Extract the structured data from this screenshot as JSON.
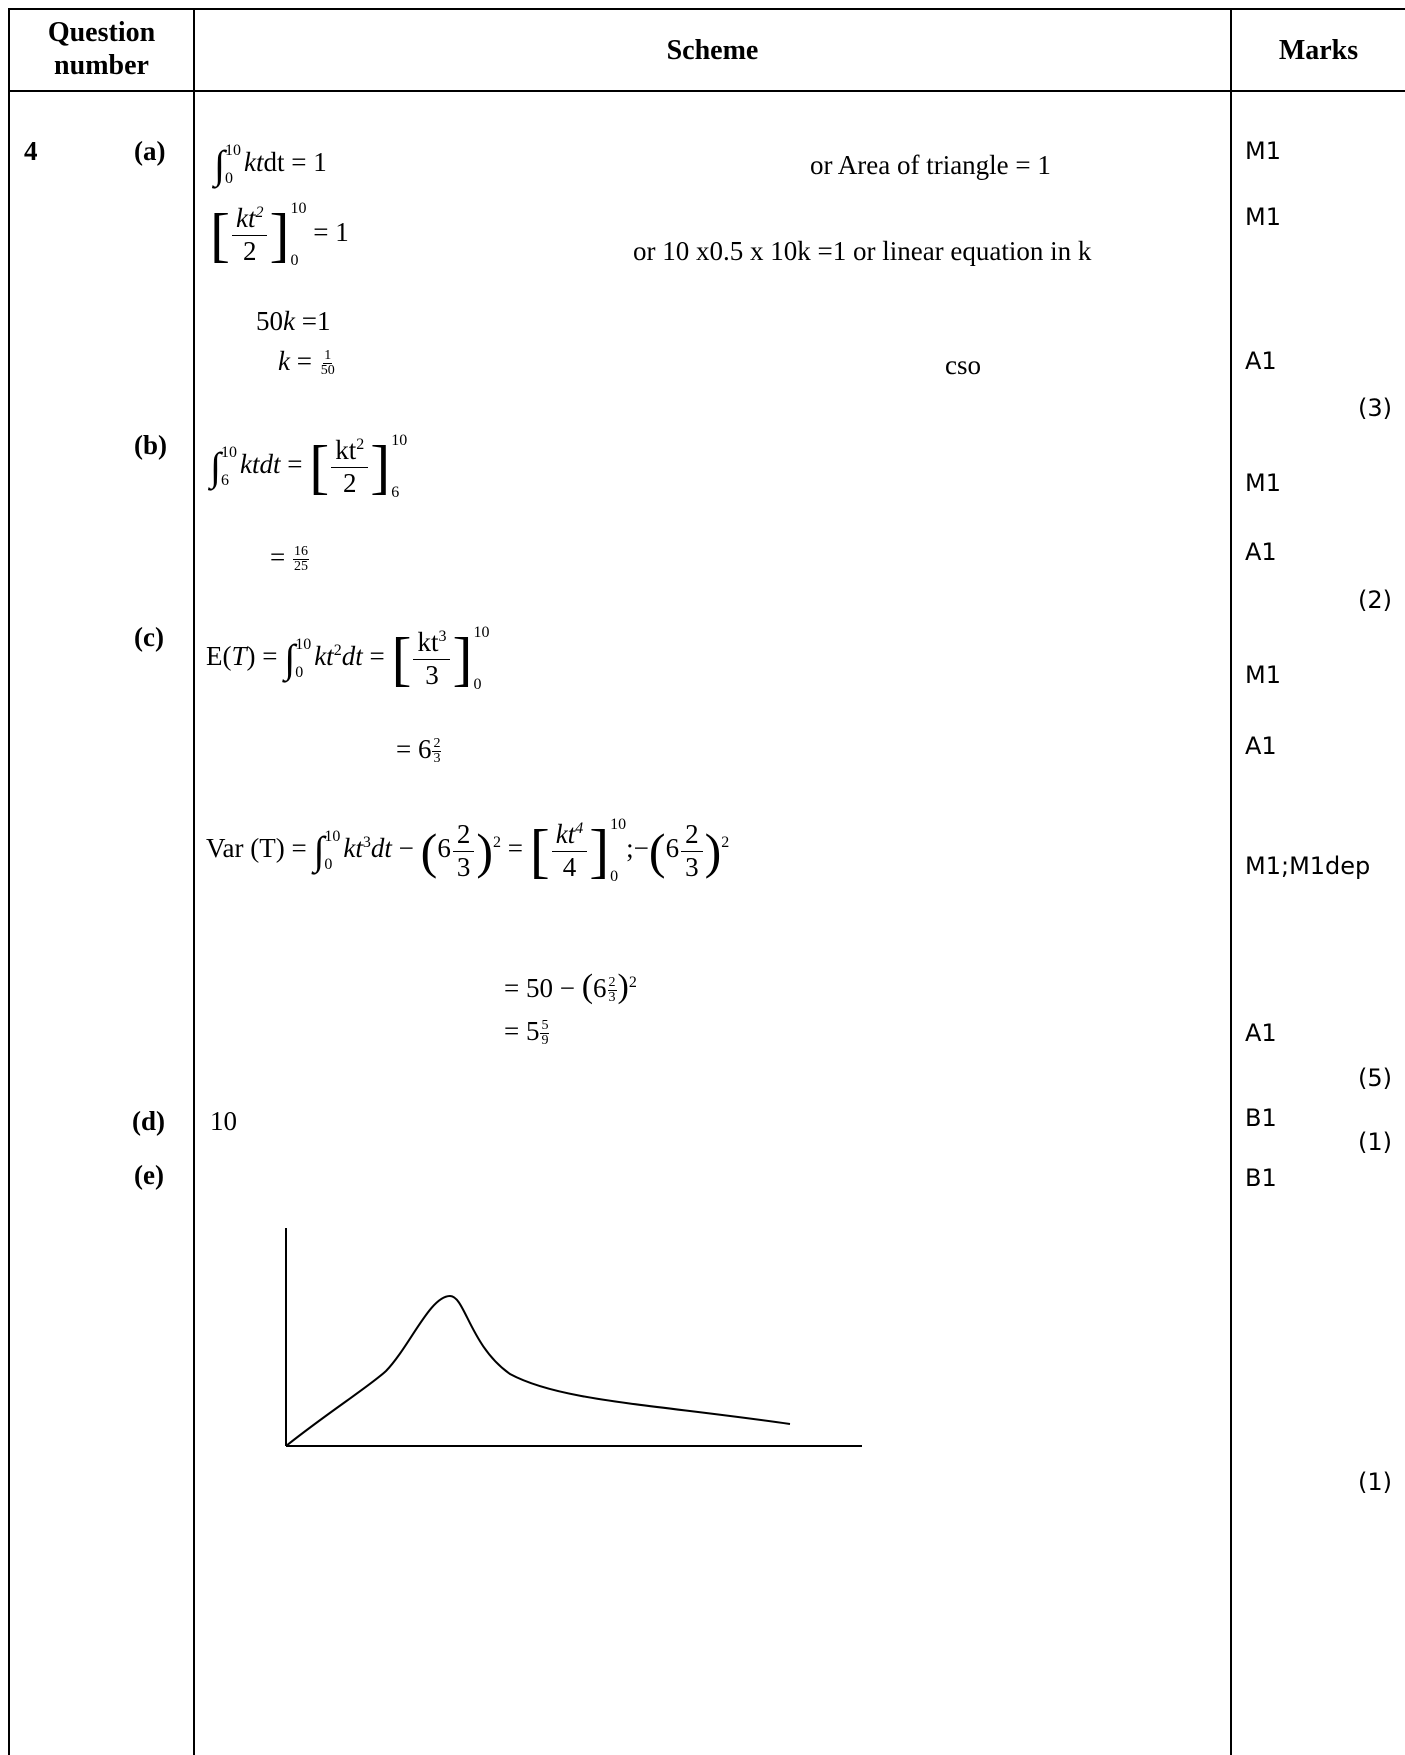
{
  "header": {
    "question_number": "Question number",
    "question_line1": "Question",
    "question_line2": "number",
    "scheme": "Scheme",
    "marks": "Marks"
  },
  "question": "4",
  "parts": {
    "a": {
      "label": "(a)",
      "total": "(3)",
      "line1": {
        "integral_upper": "10",
        "integral_lower": "0",
        "body": "kt",
        "tail": "dt = 1",
        "note": "or   Area of triangle = 1",
        "mark": "M1"
      },
      "line2": {
        "num": "kt",
        "num_exp": "2",
        "den": "2",
        "upper": "10",
        "lower": "0",
        "tail": "= 1",
        "note": "or 10 x0.5 x 10k =1 or  linear equation in k",
        "mark": "M1"
      },
      "line3": {
        "lhs": "50",
        "var": "k",
        "rhs": " =1"
      },
      "line4": {
        "var": "k",
        "eq": " = ",
        "num": "1",
        "den": "50",
        "note": "cso",
        "mark": "A1"
      }
    },
    "b": {
      "label": "(b)",
      "total": "(2)",
      "line1": {
        "integral_upper": "10",
        "integral_lower": "6",
        "body": "ktdt",
        "eq": " = ",
        "num": "kt",
        "num_exp": "2",
        "den": "2",
        "upper": "10",
        "lower": "6",
        "mark": "M1"
      },
      "line2": {
        "eq": "= ",
        "num": "16",
        "den": "25",
        "mark": "A1"
      }
    },
    "c": {
      "label": "(c)",
      "total": "(5)",
      "line1": {
        "lhs": "E(",
        "var": "T",
        "lhs_close": ") = ",
        "integral_upper": "10",
        "integral_lower": "0",
        "body": "kt",
        "exp": "2",
        "tail": "dt",
        "eq": " = ",
        "num": "kt",
        "num_exp": "3",
        "den": "3",
        "upper": "10",
        "lower": "0",
        "mark": "M1"
      },
      "line2": {
        "eq": "= 6",
        "num": "2",
        "den": "3",
        "mark": "A1"
      },
      "line3": {
        "lhs": "Var (T) = ",
        "integral_upper": "10",
        "integral_lower": "0",
        "body": "kt",
        "exp": "3",
        "tail": "dt",
        "minus": " − ",
        "whole": "6",
        "fnum": "2",
        "fden": "3",
        "sq": "2",
        "eq": " = ",
        "num": "kt",
        "num_exp": "4",
        "den": "4",
        "upper": "10",
        "lower": "0",
        "sep": ";−",
        "whole2": "6",
        "fnum2": "2",
        "fden2": "3",
        "sq2": "2",
        "mark": "M1;M1dep"
      },
      "line4": {
        "eq": "=  50 − ",
        "whole": "6",
        "num": "2",
        "den": "3",
        "sq": "2"
      },
      "line5": {
        "eq": "=  5",
        "num": "5",
        "den": "9",
        "mark": "A1"
      }
    },
    "d": {
      "label": "(d)",
      "answer": "10",
      "mark": "B1",
      "total": "(1)"
    },
    "e": {
      "label": "(e)",
      "mark": "B1",
      "total": "(1)"
    }
  }
}
